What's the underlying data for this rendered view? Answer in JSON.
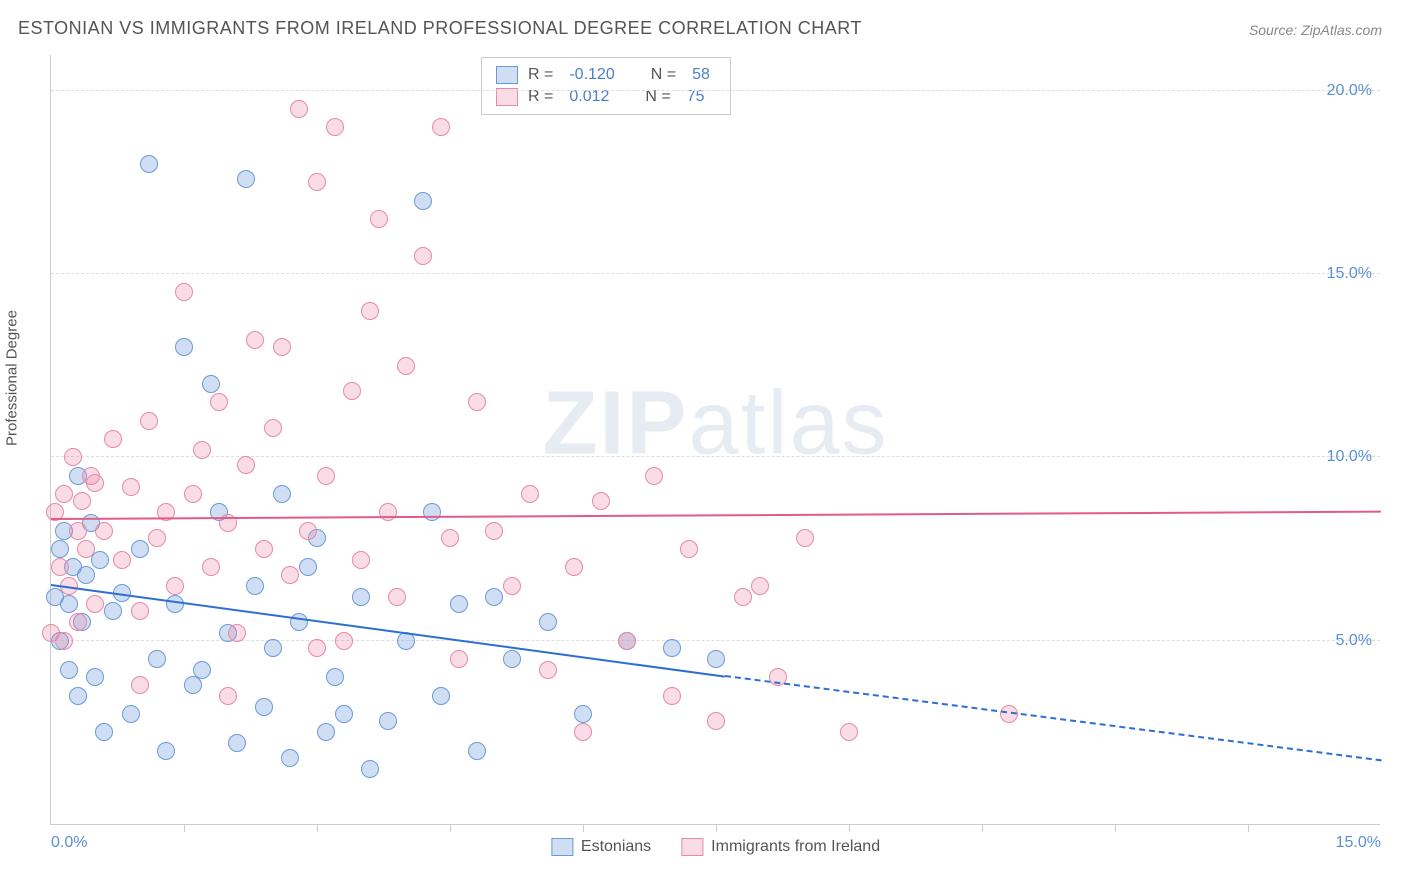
{
  "title": "ESTONIAN VS IMMIGRANTS FROM IRELAND PROFESSIONAL DEGREE CORRELATION CHART",
  "source": "Source: ZipAtlas.com",
  "yaxis_title": "Professional Degree",
  "watermark_bold": "ZIP",
  "watermark_light": "atlas",
  "chart": {
    "type": "scatter",
    "xlim": [
      0,
      15
    ],
    "ylim": [
      0,
      21
    ],
    "xtick_labels": [
      "0.0%",
      "15.0%"
    ],
    "xtick_positions": [
      0,
      15
    ],
    "minor_xtick_step": 1.5,
    "ytick_labels": [
      "5.0%",
      "10.0%",
      "15.0%",
      "20.0%"
    ],
    "ytick_positions": [
      5,
      10,
      15,
      20
    ],
    "grid_color": "#dddddd",
    "axis_color": "#cccccc",
    "background_color": "#ffffff",
    "point_radius": 9,
    "series": [
      {
        "name": "Estonians",
        "fill": "rgba(120,160,220,0.35)",
        "stroke": "#6a9bd8",
        "trend_color": "#2d6fd0",
        "r_label": "R =",
        "r_value": "-0.120",
        "n_label": "N =",
        "n_value": "58",
        "trend": {
          "x1": 0,
          "y1": 6.5,
          "x2": 7.6,
          "y2": 4.0,
          "dash_to_x": 15,
          "dash_to_y": 1.7
        },
        "points": [
          [
            0.05,
            6.2
          ],
          [
            0.1,
            7.5
          ],
          [
            0.1,
            5.0
          ],
          [
            0.15,
            8.0
          ],
          [
            0.2,
            6.0
          ],
          [
            0.2,
            4.2
          ],
          [
            0.25,
            7.0
          ],
          [
            0.3,
            9.5
          ],
          [
            0.3,
            3.5
          ],
          [
            0.35,
            5.5
          ],
          [
            0.4,
            6.8
          ],
          [
            0.45,
            8.2
          ],
          [
            0.5,
            4.0
          ],
          [
            0.55,
            7.2
          ],
          [
            0.6,
            2.5
          ],
          [
            0.7,
            5.8
          ],
          [
            0.8,
            6.3
          ],
          [
            0.9,
            3.0
          ],
          [
            1.0,
            7.5
          ],
          [
            1.1,
            18.0
          ],
          [
            1.2,
            4.5
          ],
          [
            1.3,
            2.0
          ],
          [
            1.4,
            6.0
          ],
          [
            1.5,
            13.0
          ],
          [
            1.6,
            3.8
          ],
          [
            1.8,
            12.0
          ],
          [
            1.9,
            8.5
          ],
          [
            2.0,
            5.2
          ],
          [
            2.1,
            2.2
          ],
          [
            2.2,
            17.6
          ],
          [
            2.3,
            6.5
          ],
          [
            2.4,
            3.2
          ],
          [
            2.5,
            4.8
          ],
          [
            2.6,
            9.0
          ],
          [
            2.7,
            1.8
          ],
          [
            2.8,
            5.5
          ],
          [
            3.0,
            7.8
          ],
          [
            3.1,
            2.5
          ],
          [
            3.2,
            4.0
          ],
          [
            3.3,
            3.0
          ],
          [
            3.5,
            6.2
          ],
          [
            3.6,
            1.5
          ],
          [
            3.8,
            2.8
          ],
          [
            4.0,
            5.0
          ],
          [
            4.2,
            17.0
          ],
          [
            4.4,
            3.5
          ],
          [
            4.6,
            6.0
          ],
          [
            4.8,
            2.0
          ],
          [
            5.0,
            6.2
          ],
          [
            5.2,
            4.5
          ],
          [
            5.6,
            5.5
          ],
          [
            6.0,
            3.0
          ],
          [
            6.5,
            5.0
          ],
          [
            7.0,
            4.8
          ],
          [
            7.5,
            4.5
          ],
          [
            4.3,
            8.5
          ],
          [
            2.9,
            7.0
          ],
          [
            1.7,
            4.2
          ]
        ]
      },
      {
        "name": "Immigrants from Ireland",
        "fill": "rgba(235,140,170,0.30)",
        "stroke": "#e68aa8",
        "trend_color": "#e25b8a",
        "r_label": "R =",
        "r_value": "0.012",
        "n_label": "N =",
        "n_value": "75",
        "trend": {
          "x1": 0,
          "y1": 8.3,
          "x2": 15,
          "y2": 8.5
        },
        "points": [
          [
            0.05,
            8.5
          ],
          [
            0.1,
            7.0
          ],
          [
            0.15,
            9.0
          ],
          [
            0.2,
            6.5
          ],
          [
            0.25,
            10.0
          ],
          [
            0.3,
            5.5
          ],
          [
            0.35,
            8.8
          ],
          [
            0.4,
            7.5
          ],
          [
            0.45,
            9.5
          ],
          [
            0.5,
            6.0
          ],
          [
            0.6,
            8.0
          ],
          [
            0.7,
            10.5
          ],
          [
            0.8,
            7.2
          ],
          [
            0.9,
            9.2
          ],
          [
            1.0,
            5.8
          ],
          [
            1.1,
            11.0
          ],
          [
            1.2,
            7.8
          ],
          [
            1.3,
            8.5
          ],
          [
            1.4,
            6.5
          ],
          [
            1.5,
            14.5
          ],
          [
            1.6,
            9.0
          ],
          [
            1.7,
            10.2
          ],
          [
            1.8,
            7.0
          ],
          [
            1.9,
            11.5
          ],
          [
            2.0,
            8.2
          ],
          [
            2.1,
            5.2
          ],
          [
            2.2,
            9.8
          ],
          [
            2.3,
            13.2
          ],
          [
            2.4,
            7.5
          ],
          [
            2.5,
            10.8
          ],
          [
            2.6,
            13.0
          ],
          [
            2.7,
            6.8
          ],
          [
            2.8,
            19.5
          ],
          [
            2.9,
            8.0
          ],
          [
            3.0,
            17.5
          ],
          [
            3.1,
            9.5
          ],
          [
            3.2,
            19.0
          ],
          [
            3.3,
            5.0
          ],
          [
            3.4,
            11.8
          ],
          [
            3.5,
            7.2
          ],
          [
            3.6,
            14.0
          ],
          [
            3.7,
            16.5
          ],
          [
            3.8,
            8.5
          ],
          [
            3.9,
            6.2
          ],
          [
            4.0,
            12.5
          ],
          [
            4.2,
            15.5
          ],
          [
            4.4,
            19.0
          ],
          [
            4.5,
            7.8
          ],
          [
            4.8,
            11.5
          ],
          [
            5.0,
            8.0
          ],
          [
            5.2,
            6.5
          ],
          [
            5.4,
            9.0
          ],
          [
            5.6,
            4.2
          ],
          [
            5.9,
            7.0
          ],
          [
            6.0,
            2.5
          ],
          [
            6.2,
            8.8
          ],
          [
            6.5,
            5.0
          ],
          [
            6.8,
            9.5
          ],
          [
            7.0,
            3.5
          ],
          [
            7.2,
            7.5
          ],
          [
            7.5,
            2.8
          ],
          [
            7.8,
            6.2
          ],
          [
            8.0,
            6.5
          ],
          [
            8.2,
            4.0
          ],
          [
            8.5,
            7.8
          ],
          [
            9.0,
            2.5
          ],
          [
            10.8,
            3.0
          ],
          [
            4.6,
            4.5
          ],
          [
            3.0,
            4.8
          ],
          [
            2.0,
            3.5
          ],
          [
            1.0,
            3.8
          ],
          [
            0.15,
            5.0
          ],
          [
            0.0,
            5.2
          ],
          [
            0.3,
            8.0
          ],
          [
            0.5,
            9.3
          ]
        ]
      }
    ]
  },
  "colors": {
    "title_color": "#555555",
    "tick_label_color": "#5a8fd6",
    "source_color": "#888888"
  }
}
